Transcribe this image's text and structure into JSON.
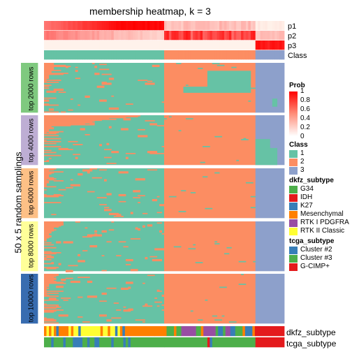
{
  "title": "membership heatmap, k = 3",
  "y_axis_label": "50 x 5 random samplings",
  "tracks": {
    "top": [
      "p1",
      "p2",
      "p3",
      "Class"
    ],
    "bottom": [
      "dkfz_subtype",
      "tcga_subtype"
    ]
  },
  "colors": {
    "class1": "#66C2A5",
    "class2": "#FC8D62",
    "class3": "#8DA0CB"
  },
  "legend": {
    "prob": {
      "title": "Prob",
      "ticks": [
        "1",
        "0.8",
        "0.6",
        "0.4",
        "0.2",
        "0"
      ]
    },
    "class": {
      "title": "Class",
      "items": [
        {
          "label": "1",
          "color": "#66C2A5"
        },
        {
          "label": "2",
          "color": "#FC8D62"
        },
        {
          "label": "3",
          "color": "#8DA0CB"
        }
      ]
    },
    "dkfz": {
      "title": "dkfz_subtype",
      "items": [
        {
          "label": "G34",
          "color": "#4DAF4A"
        },
        {
          "label": "IDH",
          "color": "#E41A1C"
        },
        {
          "label": "K27",
          "color": "#377EB8"
        },
        {
          "label": "Mesenchymal",
          "color": "#FF7F00"
        },
        {
          "label": "RTK I PDGFRA",
          "color": "#984EA3"
        },
        {
          "label": "RTK II Classic",
          "color": "#FFFF33"
        }
      ]
    },
    "tcga": {
      "title": "tcga_subtype",
      "items": [
        {
          "label": "Cluster #2",
          "color": "#377EB8"
        },
        {
          "label": "Cluster #3",
          "color": "#4DAF4A"
        },
        {
          "label": "G-CIMP+",
          "color": "#E41A1C"
        }
      ]
    }
  },
  "chart_data": {
    "type": "heatmap",
    "title": "membership heatmap, k = 3",
    "ylabel": "50 x 5 random samplings",
    "n_samples": 100,
    "class_counts": {
      "1": 50,
      "2": 38,
      "3": 12
    },
    "row_groups": [
      {
        "label": "top 2000 rows",
        "color": "#7FC97F"
      },
      {
        "label": "top 4000 rows",
        "color": "#BEAED4"
      },
      {
        "label": "top 6000 rows",
        "color": "#FDC086"
      },
      {
        "label": "top 8000 rows",
        "color": "#FFFF99"
      },
      {
        "label": "top 10000 rows",
        "color": "#386CB0"
      }
    ],
    "rows_per_group": 50,
    "prob_scale": [
      0,
      1
    ]
  }
}
